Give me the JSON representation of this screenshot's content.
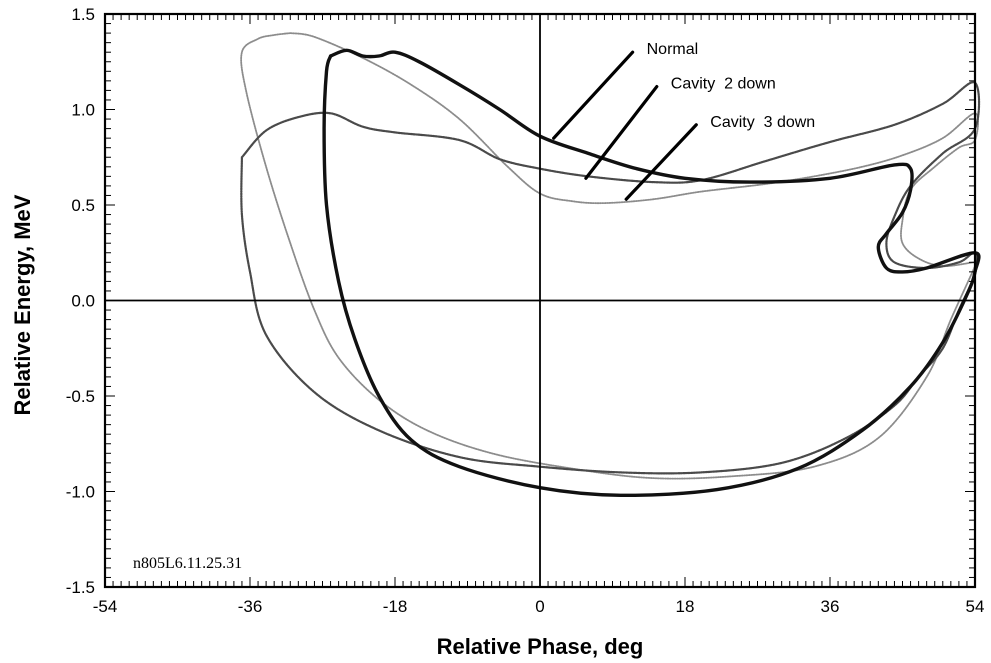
{
  "chart_data": {
    "type": "line",
    "title": "",
    "xlabel": "Relative Phase, deg",
    "ylabel": "Relative Energy, MeV",
    "xlim": [
      -54,
      54
    ],
    "ylim": [
      -1.5,
      1.5
    ],
    "xticks": [
      -54,
      -36,
      -18,
      0,
      18,
      36,
      54
    ],
    "xtick_labels": [
      "-54",
      "-36",
      "-18",
      "0",
      "18",
      "36",
      "54"
    ],
    "yticks": [
      -1.5,
      -1.0,
      -0.5,
      0.0,
      0.5,
      1.0,
      1.5
    ],
    "ytick_labels": [
      "-1.5",
      "-1.0",
      "-0.5",
      "0.0",
      "0.5",
      "1.0",
      "1.5"
    ],
    "grid": false,
    "reference_lines": {
      "x": 0,
      "y": 0
    },
    "annotation": "n805L6.11.25.31",
    "series": [
      {
        "name": "Normal",
        "style": "solid-bold",
        "color": "#111111",
        "points": [
          [
            -26,
            1.28
          ],
          [
            -24,
            1.31
          ],
          [
            -22,
            1.28
          ],
          [
            -20,
            1.28
          ],
          [
            -18,
            1.3
          ],
          [
            -15,
            1.25
          ],
          [
            -10,
            1.13
          ],
          [
            -5,
            1.0
          ],
          [
            0,
            0.86
          ],
          [
            6,
            0.77
          ],
          [
            12,
            0.69
          ],
          [
            18,
            0.64
          ],
          [
            26,
            0.62
          ],
          [
            36,
            0.64
          ],
          [
            44,
            0.71
          ],
          [
            46,
            0.69
          ],
          [
            46,
            0.58
          ],
          [
            45,
            0.46
          ],
          [
            43,
            0.35
          ],
          [
            42,
            0.28
          ],
          [
            43,
            0.17
          ],
          [
            45,
            0.15
          ],
          [
            48,
            0.17
          ],
          [
            54,
            0.25
          ],
          [
            54,
            0.15
          ],
          [
            53,
            0.03
          ],
          [
            50,
            -0.22
          ],
          [
            46,
            -0.45
          ],
          [
            40,
            -0.68
          ],
          [
            32,
            -0.88
          ],
          [
            22,
            -0.99
          ],
          [
            10,
            -1.02
          ],
          [
            0,
            -0.98
          ],
          [
            -10,
            -0.87
          ],
          [
            -16,
            -0.73
          ],
          [
            -20,
            -0.5
          ],
          [
            -23,
            -0.2
          ],
          [
            -25,
            0.1
          ],
          [
            -26.5,
            0.5
          ],
          [
            -26.8,
            0.9
          ],
          [
            -26.5,
            1.2
          ],
          [
            -26,
            1.28
          ]
        ]
      },
      {
        "name": "Cavity  2 down",
        "style": "medium-dark",
        "color": "#4a4a4a",
        "points": [
          [
            -37,
            0.75
          ],
          [
            -34,
            0.89
          ],
          [
            -30,
            0.96
          ],
          [
            -26,
            0.98
          ],
          [
            -22,
            0.91
          ],
          [
            -18,
            0.88
          ],
          [
            -10,
            0.84
          ],
          [
            -5,
            0.74
          ],
          [
            0,
            0.69
          ],
          [
            6,
            0.65
          ],
          [
            14,
            0.62
          ],
          [
            20,
            0.63
          ],
          [
            28,
            0.73
          ],
          [
            36,
            0.83
          ],
          [
            44,
            0.92
          ],
          [
            50,
            1.03
          ],
          [
            54,
            1.14
          ],
          [
            54,
            0.9
          ],
          [
            50,
            0.77
          ],
          [
            46,
            0.6
          ],
          [
            44,
            0.44
          ],
          [
            43,
            0.3
          ],
          [
            44,
            0.2
          ],
          [
            48,
            0.17
          ],
          [
            52,
            0.2
          ],
          [
            54,
            0.25
          ],
          [
            54,
            0.14
          ],
          [
            52,
            -0.05
          ],
          [
            50,
            -0.25
          ],
          [
            47,
            -0.4
          ],
          [
            44,
            -0.55
          ],
          [
            38,
            -0.72
          ],
          [
            30,
            -0.85
          ],
          [
            20,
            -0.9
          ],
          [
            10,
            -0.9
          ],
          [
            0,
            -0.87
          ],
          [
            -10,
            -0.82
          ],
          [
            -20,
            -0.68
          ],
          [
            -28,
            -0.48
          ],
          [
            -34,
            -0.18
          ],
          [
            -36,
            0.15
          ],
          [
            -37,
            0.45
          ],
          [
            -37,
            0.75
          ]
        ]
      },
      {
        "name": "Cavity  3 down",
        "style": "dotted-light",
        "color": "#8c8c8c",
        "points": [
          [
            -31,
            1.4
          ],
          [
            -33,
            1.39
          ],
          [
            -35,
            1.37
          ],
          [
            -37,
            1.3
          ],
          [
            -36.5,
            1.1
          ],
          [
            -34,
            0.7
          ],
          [
            -31,
            0.3
          ],
          [
            -28,
            -0.05
          ],
          [
            -25,
            -0.3
          ],
          [
            -20,
            -0.52
          ],
          [
            -14,
            -0.68
          ],
          [
            -6,
            -0.8
          ],
          [
            4,
            -0.88
          ],
          [
            14,
            -0.93
          ],
          [
            24,
            -0.92
          ],
          [
            34,
            -0.87
          ],
          [
            42,
            -0.72
          ],
          [
            48,
            -0.4
          ],
          [
            51,
            -0.1
          ],
          [
            54,
            0.18
          ],
          [
            54,
            0.2
          ],
          [
            50,
            0.18
          ],
          [
            47,
            0.22
          ],
          [
            45,
            0.3
          ],
          [
            45,
            0.42
          ],
          [
            46,
            0.58
          ],
          [
            49,
            0.7
          ],
          [
            52,
            0.8
          ],
          [
            54,
            0.84
          ],
          [
            54,
            0.98
          ],
          [
            50,
            0.85
          ],
          [
            45,
            0.76
          ],
          [
            40,
            0.7
          ],
          [
            34,
            0.65
          ],
          [
            28,
            0.61
          ],
          [
            20,
            0.57
          ],
          [
            14,
            0.53
          ],
          [
            8,
            0.51
          ],
          [
            4,
            0.52
          ],
          [
            0,
            0.56
          ],
          [
            -4,
            0.7
          ],
          [
            -10,
            0.95
          ],
          [
            -16,
            1.13
          ],
          [
            -22,
            1.27
          ],
          [
            -28,
            1.38
          ],
          [
            -31,
            1.4
          ]
        ]
      }
    ],
    "legend": [
      {
        "label": "Normal",
        "x": 3,
        "y": 1.3
      },
      {
        "label": "Cavity  2 down",
        "x": 5,
        "y": 1.12
      },
      {
        "label": "Cavity  3 down",
        "x": 9,
        "y": 0.92
      }
    ]
  }
}
